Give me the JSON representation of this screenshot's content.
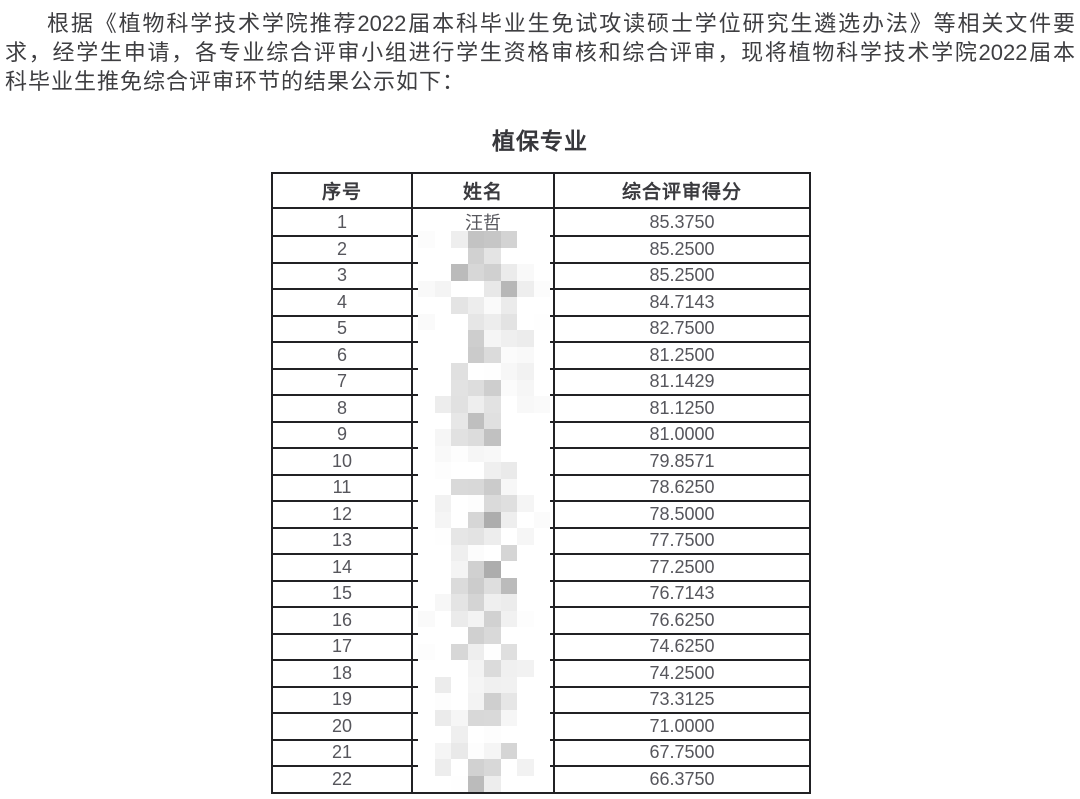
{
  "intro": {
    "lines": [
      "根据《植物科学技术学院推荐2022届本科毕业生免试攻读硕士学位研究生遴选办法》等相关文件要",
      "求，经学生申请，各专业综合评审小组进行学生资格审核和综合评审，现将植物科学技术学院2022届本",
      "科毕业生推免综合评审环节的结果公示如下："
    ]
  },
  "section": {
    "title": "植保专业"
  },
  "table": {
    "columns": [
      "序号",
      "姓名",
      "综合评审得分"
    ],
    "rows": [
      {
        "no": "1",
        "name": "汪哲",
        "score": "85.3750",
        "name_redacted": false
      },
      {
        "no": "2",
        "name": "",
        "score": "85.2500",
        "name_redacted": true
      },
      {
        "no": "3",
        "name": "",
        "score": "85.2500",
        "name_redacted": true
      },
      {
        "no": "4",
        "name": "",
        "score": "84.7143",
        "name_redacted": true
      },
      {
        "no": "5",
        "name": "",
        "score": "82.7500",
        "name_redacted": true
      },
      {
        "no": "6",
        "name": "",
        "score": "81.2500",
        "name_redacted": true
      },
      {
        "no": "7",
        "name": "",
        "score": "81.1429",
        "name_redacted": true
      },
      {
        "no": "8",
        "name": "",
        "score": "81.1250",
        "name_redacted": true
      },
      {
        "no": "9",
        "name": "",
        "score": "81.0000",
        "name_redacted": true
      },
      {
        "no": "10",
        "name": "",
        "score": "79.8571",
        "name_redacted": true
      },
      {
        "no": "11",
        "name": "",
        "score": "78.6250",
        "name_redacted": true
      },
      {
        "no": "12",
        "name": "",
        "score": "78.5000",
        "name_redacted": true
      },
      {
        "no": "13",
        "name": "",
        "score": "77.7500",
        "name_redacted": true
      },
      {
        "no": "14",
        "name": "",
        "score": "77.2500",
        "name_redacted": true
      },
      {
        "no": "15",
        "name": "",
        "score": "76.7143",
        "name_redacted": true
      },
      {
        "no": "16",
        "name": "",
        "score": "76.6250",
        "name_redacted": true
      },
      {
        "no": "17",
        "name": "",
        "score": "74.6250",
        "name_redacted": true
      },
      {
        "no": "18",
        "name": "",
        "score": "74.2500",
        "name_redacted": true
      },
      {
        "no": "19",
        "name": "",
        "score": "73.3125",
        "name_redacted": true
      },
      {
        "no": "20",
        "name": "",
        "score": "71.0000",
        "name_redacted": true
      },
      {
        "no": "21",
        "name": "",
        "score": "67.7500",
        "name_redacted": true
      },
      {
        "no": "22",
        "name": "",
        "score": "66.3750",
        "name_redacted": true
      }
    ]
  },
  "colors": {
    "page_bg": "#ffffff",
    "body_text": "#3e3e41",
    "table_border": "#212124",
    "cell_text": "#56565c",
    "mosaic_mid_gray": "#c8c8c8"
  }
}
